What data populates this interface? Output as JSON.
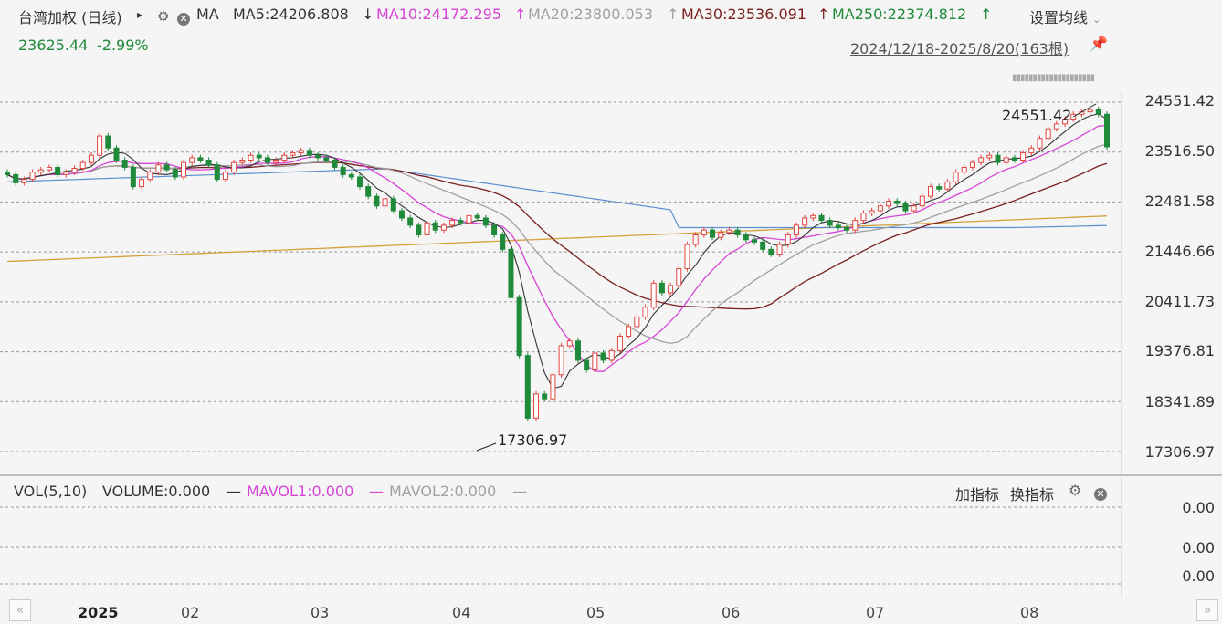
{
  "header": {
    "title": "台湾加权 (日线)",
    "title_arrow": "▸",
    "ma_label": "MA",
    "ma5": "MA5:24206.808",
    "ma5_arrow": "↓",
    "ma10": "MA10:24172.295",
    "ma10_arrow": "↑",
    "ma20": "MA20:23800.053",
    "ma20_arrow": "↑",
    "ma30": "MA30:23536.091",
    "ma30_arrow": "↑",
    "ma250": "MA250:22374.812",
    "ma250_arrow": "↑",
    "settings_label": "设置均线",
    "price": "23625.44",
    "change": "-2.99%",
    "date_range": "2024/12/18-2025/8/20(163根)"
  },
  "price_axis": [
    "24551.42",
    "23516.50",
    "22481.58",
    "21446.66",
    "20411.73",
    "19376.81",
    "18341.89",
    "17306.97"
  ],
  "annotations": {
    "high": "24551.42",
    "low": "17306.97"
  },
  "volume_panel": {
    "vol_label": "VOL(5,10)",
    "volume": "VOLUME:0.000",
    "volume_dash": "—",
    "mavol1": "MAVOL1:0.000",
    "mavol1_dash": "—",
    "mavol2": "MAVOL2:0.000",
    "mavol2_dash": "—",
    "add_indicator": "加指标",
    "switch_indicator": "换指标",
    "axis": [
      "0.00",
      "0.00",
      "0.00"
    ]
  },
  "time_axis": [
    "2025",
    "02",
    "03",
    "04",
    "05",
    "06",
    "07",
    "08"
  ],
  "nav": {
    "left": "«",
    "right": "»"
  },
  "colors": {
    "up": "#e0453f",
    "down": "#1f8a3a",
    "ma5": "#333333",
    "ma10": "#d644d6",
    "ma20": "#a0a0a0",
    "ma30": "#7a1f1f",
    "ma250": "#d4a03a",
    "ma60": "#5b8fcf"
  },
  "chart_data": {
    "type": "candlestick",
    "ylim": [
      17306.97,
      24551.42
    ],
    "x_labels": [
      "2025",
      "02",
      "03",
      "04",
      "05",
      "06",
      "07",
      "08"
    ],
    "high": 24551.42,
    "low": 17306.97,
    "last_close": 23625.44,
    "change_pct": "-2.99%",
    "series": [
      {
        "name": "MA5",
        "last": 24206.808
      },
      {
        "name": "MA10",
        "last": 24172.295
      },
      {
        "name": "MA20",
        "last": 23800.053
      },
      {
        "name": "MA30",
        "last": 23536.091
      },
      {
        "name": "MA250",
        "last": 22374.812
      }
    ],
    "closes": [
      23050,
      22880,
      22950,
      23100,
      23150,
      23200,
      23050,
      23100,
      23180,
      23300,
      23450,
      23850,
      23600,
      23350,
      23200,
      22800,
      22950,
      23100,
      23250,
      23150,
      23000,
      23300,
      23400,
      23350,
      23250,
      22950,
      23100,
      23300,
      23350,
      23450,
      23400,
      23300,
      23350,
      23450,
      23500,
      23550,
      23450,
      23400,
      23350,
      23200,
      23050,
      23000,
      22800,
      22600,
      22400,
      22550,
      22300,
      22150,
      22000,
      21800,
      22050,
      21900,
      22000,
      22100,
      22050,
      22200,
      22150,
      22000,
      21800,
      21500,
      20500,
      19300,
      18000,
      18500,
      18400,
      18900,
      19500,
      19600,
      19200,
      19000,
      19350,
      19200,
      19400,
      19700,
      19900,
      20100,
      20300,
      20800,
      20600,
      20750,
      21100,
      21600,
      21800,
      21900,
      21750,
      21850,
      21900,
      21800,
      21700,
      21650,
      21500,
      21400,
      21600,
      21800,
      22000,
      22150,
      22200,
      22100,
      22000,
      21950,
      21900,
      22100,
      22250,
      22300,
      22400,
      22500,
      22450,
      22300,
      22400,
      22600,
      22800,
      22750,
      22900,
      23100,
      23200,
      23300,
      23400,
      23450,
      23300,
      23400,
      23350,
      23500,
      23600,
      23800,
      24000,
      24100,
      24200,
      24300,
      24350,
      24400,
      24300,
      23625.44
    ]
  }
}
